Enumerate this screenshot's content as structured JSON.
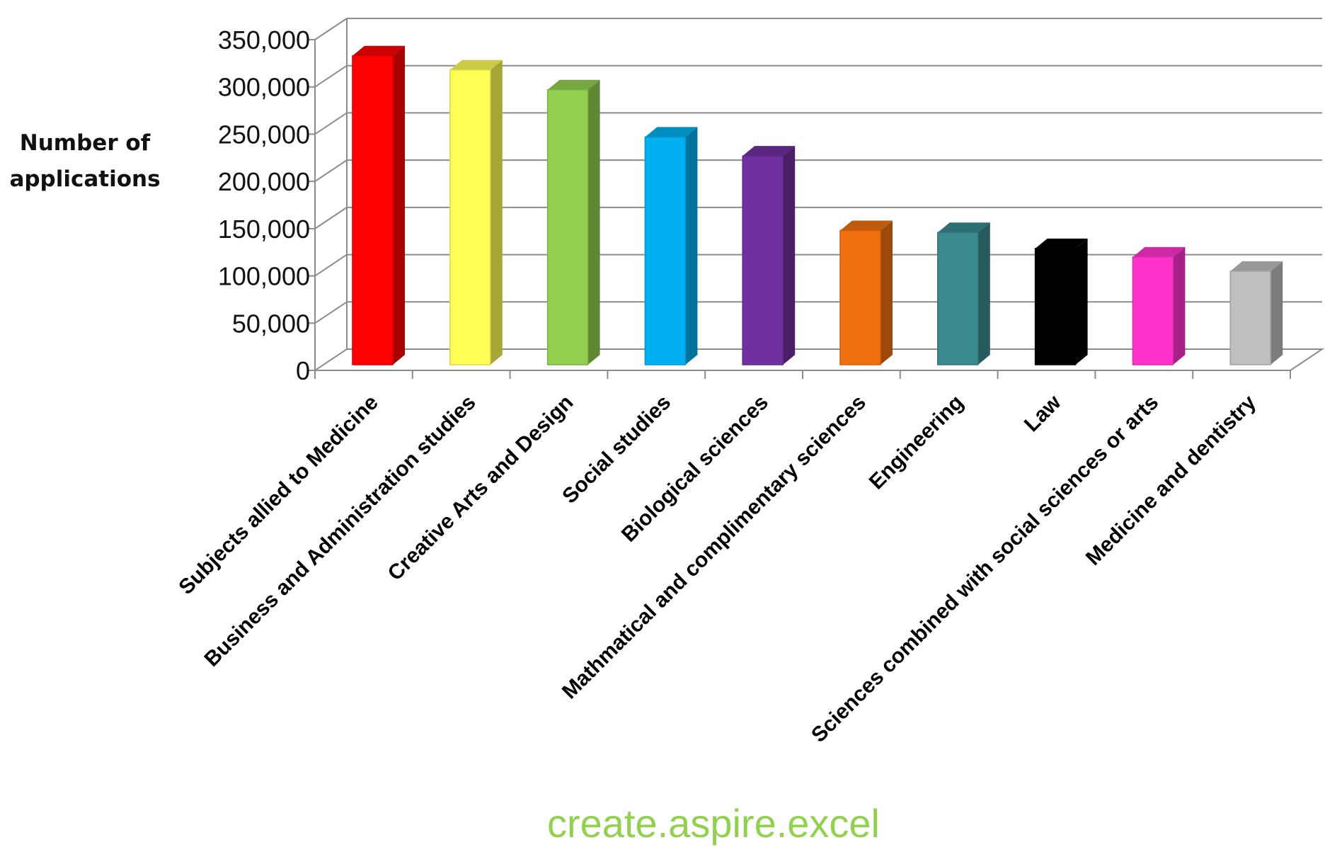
{
  "chart_data": {
    "type": "bar",
    "style": "3d-column",
    "title": "",
    "ylabel_lines": [
      "Number of",
      "applications"
    ],
    "xlabel": "",
    "ylim": [
      0,
      350000
    ],
    "ytick_step": 50000,
    "ytick_labels": [
      "0",
      "50,000",
      "100,000",
      "150,000",
      "200,000",
      "250,000",
      "300,000",
      "350,000"
    ],
    "grid": true,
    "legend": "none",
    "categories": [
      "Subjects allied to Medicine",
      "Business and Administration studies",
      "Creative Arts and Design",
      "Social studies",
      "Biological sciences",
      "Mathmatical and complimentary sciences",
      "Engineering",
      "Law",
      "Sciences combined with social sciences or arts",
      "Medicine and dentistry"
    ],
    "values": [
      327000,
      312000,
      291000,
      241000,
      221000,
      142000,
      140000,
      123000,
      114000,
      99000
    ],
    "colors": [
      "#ff0000",
      "#ffff55",
      "#92d050",
      "#00b0f0",
      "#7030a0",
      "#f07010",
      "#3a8a8e",
      "#000000",
      "#ff33cc",
      "#bfbfbf"
    ]
  },
  "watermark": "create.aspire.excel"
}
